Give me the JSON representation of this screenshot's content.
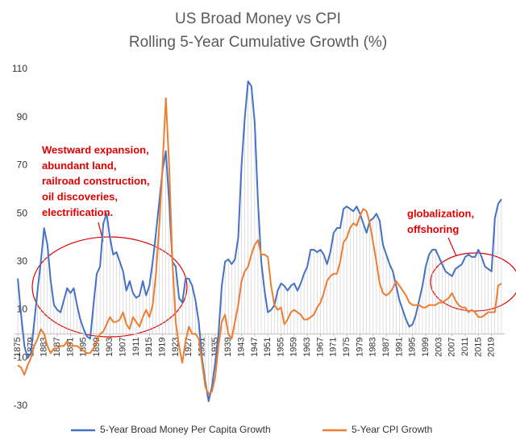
{
  "chart_data": {
    "type": "line",
    "title": [
      "US Broad Money vs CPI",
      "Rolling 5-Year Cumulative Growth (%)"
    ],
    "x": [
      1875,
      1876,
      1877,
      1878,
      1879,
      1880,
      1881,
      1882,
      1883,
      1884,
      1885,
      1886,
      1887,
      1888,
      1889,
      1890,
      1891,
      1892,
      1893,
      1894,
      1895,
      1896,
      1897,
      1898,
      1899,
      1900,
      1901,
      1902,
      1903,
      1904,
      1905,
      1906,
      1907,
      1908,
      1909,
      1910,
      1911,
      1912,
      1913,
      1914,
      1915,
      1916,
      1917,
      1918,
      1919,
      1920,
      1921,
      1922,
      1923,
      1924,
      1925,
      1926,
      1927,
      1928,
      1929,
      1930,
      1931,
      1932,
      1933,
      1934,
      1935,
      1936,
      1937,
      1938,
      1939,
      1940,
      1941,
      1942,
      1943,
      1944,
      1945,
      1946,
      1947,
      1948,
      1949,
      1950,
      1951,
      1952,
      1953,
      1954,
      1955,
      1956,
      1957,
      1958,
      1959,
      1960,
      1961,
      1962,
      1963,
      1964,
      1965,
      1966,
      1967,
      1968,
      1969,
      1970,
      1971,
      1972,
      1973,
      1974,
      1975,
      1976,
      1977,
      1978,
      1979,
      1980,
      1981,
      1982,
      1983,
      1984,
      1985,
      1986,
      1987,
      1988,
      1989,
      1990,
      1991,
      1992,
      1993,
      1994,
      1995,
      1996,
      1997,
      1998,
      1999,
      2000,
      2001,
      2002,
      2003,
      2004,
      2005,
      2006,
      2007,
      2008,
      2009,
      2010,
      2011,
      2012,
      2013,
      2014,
      2015,
      2016,
      2017,
      2018,
      2019,
      2020,
      2021,
      2022
    ],
    "series": [
      {
        "name": "5-Year Broad Money Per Capita Growth",
        "color": "#4472c4",
        "values": [
          23,
          8,
          -5,
          -10,
          -8,
          5,
          18,
          30,
          44,
          37,
          22,
          12,
          10,
          9,
          14,
          19,
          17,
          19,
          12,
          6,
          2,
          -1,
          -2,
          12,
          25,
          28,
          46,
          50,
          40,
          33,
          34,
          30,
          26,
          18,
          22,
          17,
          15,
          16,
          22,
          16,
          20,
          30,
          42,
          55,
          68,
          76,
          55,
          30,
          28,
          15,
          13,
          23,
          23,
          20,
          14,
          5,
          -10,
          -20,
          -28,
          -22,
          -12,
          0,
          20,
          30,
          31,
          29,
          31,
          40,
          70,
          90,
          105,
          103,
          88,
          55,
          30,
          18,
          9,
          10,
          12,
          18,
          21,
          20,
          18,
          20,
          21,
          18,
          21,
          25,
          28,
          35,
          35,
          34,
          35,
          33,
          29,
          34,
          42,
          44,
          44,
          52,
          53,
          52,
          51,
          53,
          50,
          46,
          42,
          47,
          48,
          50,
          47,
          37,
          33,
          29,
          26,
          20,
          14,
          10,
          6,
          3,
          4,
          8,
          14,
          20,
          28,
          33,
          35,
          35,
          32,
          29,
          26,
          25,
          24,
          27,
          28,
          29,
          32,
          33,
          32,
          32,
          35,
          32,
          28,
          27,
          26,
          48,
          54,
          56
        ]
      },
      {
        "name": "5-Year CPI Growth",
        "color": "#ed7d31",
        "values": [
          -13,
          -14,
          -17,
          -13,
          -10,
          -5,
          -2,
          2,
          0,
          -5,
          -8,
          -6,
          -6,
          -5,
          -5,
          -3,
          -5,
          -5,
          -5,
          -6,
          -7,
          -8,
          -8,
          -6,
          -3,
          0,
          1,
          4,
          7,
          5,
          5,
          6,
          9,
          4,
          2,
          7,
          5,
          3,
          7,
          10,
          7,
          12,
          25,
          45,
          70,
          98,
          70,
          30,
          5,
          -5,
          -12,
          -3,
          3,
          0,
          0,
          -2,
          -12,
          -22,
          -25,
          -24,
          -18,
          -5,
          5,
          8,
          0,
          -2,
          5,
          12,
          22,
          26,
          28,
          33,
          37,
          39,
          33,
          33,
          32,
          20,
          12,
          10,
          11,
          4,
          6,
          9,
          10,
          9,
          8,
          6,
          6,
          7,
          8,
          11,
          13,
          17,
          22,
          24,
          25,
          25,
          30,
          38,
          40,
          44,
          46,
          45,
          49,
          52,
          51,
          46,
          38,
          30,
          21,
          17,
          16,
          17,
          19,
          22,
          20,
          18,
          16,
          13,
          12,
          12,
          12,
          11,
          11,
          12,
          12,
          12,
          13,
          13,
          14,
          15,
          17,
          14,
          12,
          11,
          11,
          9,
          10,
          9,
          7,
          7,
          8,
          9,
          9,
          9,
          20,
          21
        ]
      }
    ],
    "xlim": [
      1874,
      2023
    ],
    "xticks": [
      1875,
      1879,
      1883,
      1887,
      1891,
      1895,
      1899,
      1903,
      1907,
      1911,
      1915,
      1919,
      1923,
      1927,
      1931,
      1935,
      1939,
      1943,
      1947,
      1951,
      1955,
      1959,
      1963,
      1967,
      1971,
      1975,
      1979,
      1983,
      1987,
      1991,
      1995,
      1999,
      2003,
      2007,
      2011,
      2015,
      2019
    ],
    "ylim": [
      -30,
      110
    ],
    "yticks": [
      -30,
      -10,
      10,
      30,
      50,
      70,
      90,
      110
    ],
    "grid": false,
    "drop_lines": true,
    "legend": "bottom",
    "annotations": [
      {
        "lines": [
          "Westward expansion,",
          "abundant land,",
          "railroad construction,",
          "oil discoveries,",
          "electrification."
        ]
      },
      {
        "lines": [
          "globalization,",
          "offshoring"
        ]
      }
    ]
  }
}
